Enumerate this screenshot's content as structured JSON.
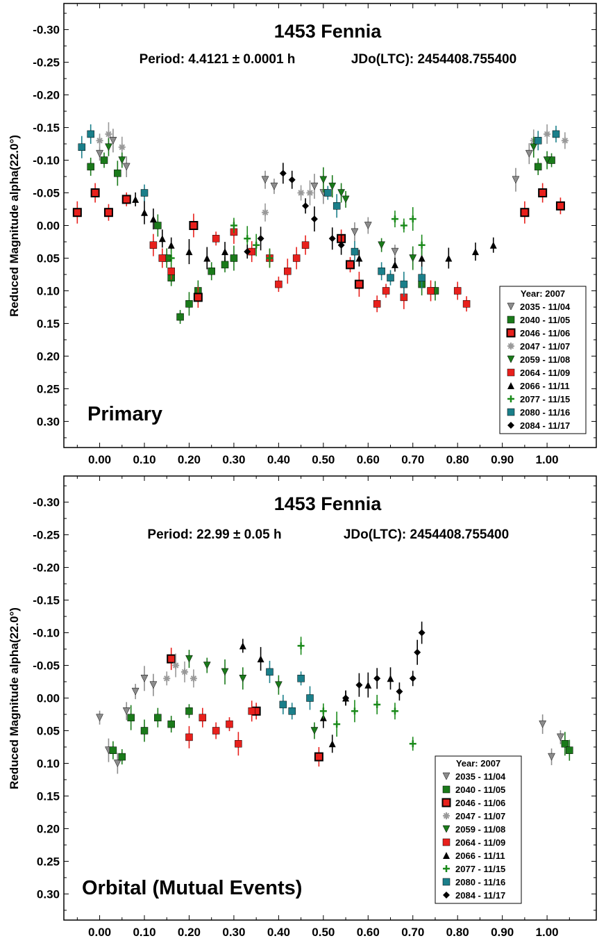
{
  "chart_data": [
    {
      "type": "scatter",
      "title": "1453 Fennia",
      "period": "Period: 4.4121 ± 0.0001 h",
      "epoch": "JDo(LTC): 2454408.755400",
      "ylabel": "Reduced Magnitude alpha(22.0°)",
      "panel_label": "Primary",
      "xlim": [
        -0.08,
        1.11
      ],
      "ylim": [
        -0.34,
        0.34
      ],
      "y_inverted": true,
      "x_ticks": [
        "0.00",
        "0.10",
        "0.20",
        "0.30",
        "0.40",
        "0.50",
        "0.60",
        "0.70",
        "0.80",
        "0.90",
        "1.00"
      ],
      "y_ticks": [
        "-0.30",
        "-0.25",
        "-0.20",
        "-0.15",
        "-0.10",
        "-0.05",
        "0.00",
        "0.05",
        "0.10",
        "0.15",
        "0.20",
        "0.25",
        "0.30"
      ],
      "legend": {
        "title": "Year: 2007",
        "position": "bottom-right",
        "entries": [
          {
            "label": "2035 - 11/04",
            "marker": "triangle-down",
            "color": "#8c8c8c"
          },
          {
            "label": "2040 - 11/05",
            "marker": "square",
            "color": "#1a7a1a"
          },
          {
            "label": "2046 - 11/06",
            "marker": "square-outlined",
            "color": "#e8201c"
          },
          {
            "label": "2047 - 11/07",
            "marker": "asterisk",
            "color": "#999999"
          },
          {
            "label": "2059 - 11/08",
            "marker": "triangle-down",
            "color": "#1a7a1a"
          },
          {
            "label": "2064 - 11/09",
            "marker": "square",
            "color": "#e8201c"
          },
          {
            "label": "2066 - 11/11",
            "marker": "triangle-up",
            "color": "#000000"
          },
          {
            "label": "2077 - 11/15",
            "marker": "plus",
            "color": "#1a8a1a"
          },
          {
            "label": "2080 - 11/16",
            "marker": "square",
            "color": "#1a7f8a"
          },
          {
            "label": "2084 - 11/17",
            "marker": "diamond",
            "color": "#000000"
          }
        ]
      },
      "series": [
        {
          "name": "2035 - 11/04",
          "x": [
            0.0,
            0.03,
            0.06,
            0.37,
            0.39,
            0.48,
            0.5,
            0.57,
            0.6,
            0.66,
            0.93,
            0.96
          ],
          "y": [
            -0.11,
            -0.13,
            -0.09,
            -0.07,
            -0.06,
            -0.06,
            -0.05,
            0.01,
            0.0,
            0.04,
            -0.07,
            -0.11
          ]
        },
        {
          "name": "2040 - 11/05",
          "x": [
            -0.02,
            0.01,
            0.04,
            0.13,
            0.15,
            0.16,
            0.18,
            0.2,
            0.22,
            0.25,
            0.28,
            0.3,
            0.72,
            0.75,
            0.98,
            1.01
          ],
          "y": [
            -0.09,
            -0.1,
            -0.08,
            0.0,
            0.05,
            0.08,
            0.14,
            0.12,
            0.1,
            0.07,
            0.06,
            0.05,
            0.09,
            0.1,
            -0.09,
            -0.1
          ]
        },
        {
          "name": "2046 - 11/06",
          "x": [
            -0.05,
            -0.01,
            0.02,
            0.06,
            0.21,
            0.22,
            0.54,
            0.56,
            0.58,
            0.95,
            0.99,
            1.03
          ],
          "y": [
            -0.02,
            -0.05,
            -0.02,
            -0.04,
            0.0,
            0.11,
            0.02,
            0.06,
            0.09,
            -0.02,
            -0.05,
            -0.03
          ]
        },
        {
          "name": "2047 - 11/07",
          "x": [
            0.0,
            0.02,
            0.05,
            0.37,
            0.45,
            0.47,
            0.97,
            1.0,
            1.04
          ],
          "y": [
            -0.13,
            -0.14,
            -0.12,
            -0.02,
            -0.05,
            -0.05,
            -0.13,
            -0.14,
            -0.13
          ]
        },
        {
          "name": "2059 - 11/08",
          "x": [
            0.02,
            0.05,
            0.5,
            0.52,
            0.54,
            0.55,
            0.63,
            0.7,
            0.97,
            1.0
          ],
          "y": [
            -0.12,
            -0.1,
            -0.07,
            -0.06,
            -0.05,
            -0.04,
            0.03,
            0.05,
            -0.12,
            -0.1
          ]
        },
        {
          "name": "2064 - 11/09",
          "x": [
            0.12,
            0.14,
            0.16,
            0.26,
            0.3,
            0.34,
            0.38,
            0.4,
            0.42,
            0.44,
            0.46,
            0.62,
            0.64,
            0.68,
            0.74,
            0.8,
            0.82
          ],
          "y": [
            0.03,
            0.05,
            0.07,
            0.02,
            0.01,
            0.04,
            0.05,
            0.09,
            0.07,
            0.05,
            0.03,
            0.12,
            0.1,
            0.11,
            0.1,
            0.1,
            0.12
          ]
        },
        {
          "name": "2066 - 11/11",
          "x": [
            0.08,
            0.1,
            0.12,
            0.14,
            0.16,
            0.2,
            0.24,
            0.28,
            0.58,
            0.66,
            0.72,
            0.78,
            0.84,
            0.88
          ],
          "y": [
            -0.04,
            -0.02,
            -0.01,
            0.02,
            0.03,
            0.04,
            0.05,
            0.04,
            0.05,
            0.06,
            0.05,
            0.05,
            0.04,
            0.03
          ]
        },
        {
          "name": "2077 - 11/15",
          "x": [
            0.16,
            0.3,
            0.33,
            0.35,
            0.38,
            0.66,
            0.68,
            0.7,
            0.72
          ],
          "y": [
            0.05,
            0.0,
            0.02,
            0.03,
            0.05,
            -0.01,
            0.0,
            -0.01,
            0.03
          ]
        },
        {
          "name": "2080 - 11/16",
          "x": [
            -0.04,
            -0.02,
            0.1,
            0.51,
            0.53,
            0.57,
            0.63,
            0.65,
            0.68,
            0.72,
            0.98,
            1.02
          ],
          "y": [
            -0.12,
            -0.14,
            -0.05,
            -0.05,
            -0.03,
            0.04,
            0.07,
            0.08,
            0.09,
            0.08,
            -0.13,
            -0.14
          ]
        },
        {
          "name": "2084 - 11/17",
          "x": [
            0.33,
            0.36,
            0.41,
            0.43,
            0.46,
            0.48,
            0.52,
            0.54
          ],
          "y": [
            0.04,
            0.02,
            -0.08,
            -0.07,
            -0.03,
            -0.01,
            0.02,
            0.03
          ]
        }
      ]
    },
    {
      "type": "scatter",
      "title": "1453 Fennia",
      "period": "Period: 22.99 ± 0.05 h",
      "epoch": "JDo(LTC): 2454408.755400",
      "ylabel": "Reduced Magnitude alpha(22.0°)",
      "panel_label": "Orbital (Mutual Events)",
      "xlim": [
        -0.08,
        1.11
      ],
      "ylim": [
        -0.34,
        0.34
      ],
      "y_inverted": true,
      "x_ticks": [
        "0.00",
        "0.10",
        "0.20",
        "0.30",
        "0.40",
        "0.50",
        "0.60",
        "0.70",
        "0.80",
        "0.90",
        "1.00"
      ],
      "y_ticks": [
        "-0.30",
        "-0.25",
        "-0.20",
        "-0.15",
        "-0.10",
        "-0.05",
        "0.00",
        "0.05",
        "0.10",
        "0.15",
        "0.20",
        "0.25",
        "0.30"
      ],
      "legend": {
        "title": "Year: 2007",
        "position": "bottom-right",
        "entries": [
          {
            "label": "2035 - 11/04",
            "marker": "triangle-down",
            "color": "#8c8c8c"
          },
          {
            "label": "2040 - 11/05",
            "marker": "square",
            "color": "#1a7a1a"
          },
          {
            "label": "2046 - 11/06",
            "marker": "square-outlined",
            "color": "#e8201c"
          },
          {
            "label": "2047 - 11/07",
            "marker": "asterisk",
            "color": "#999999"
          },
          {
            "label": "2059 - 11/08",
            "marker": "triangle-down",
            "color": "#1a7a1a"
          },
          {
            "label": "2064 - 11/09",
            "marker": "square",
            "color": "#e8201c"
          },
          {
            "label": "2066 - 11/11",
            "marker": "triangle-up",
            "color": "#000000"
          },
          {
            "label": "2077 - 11/15",
            "marker": "plus",
            "color": "#1a8a1a"
          },
          {
            "label": "2080 - 11/16",
            "marker": "square",
            "color": "#1a7f8a"
          },
          {
            "label": "2084 - 11/17",
            "marker": "diamond",
            "color": "#000000"
          }
        ]
      },
      "series": [
        {
          "name": "2035 - 11/04",
          "x": [
            0.0,
            0.02,
            0.04,
            0.06,
            0.08,
            0.1,
            0.12,
            0.99,
            1.01,
            1.03
          ],
          "y": [
            0.03,
            0.08,
            0.1,
            0.02,
            -0.01,
            -0.03,
            -0.02,
            0.04,
            0.09,
            0.06
          ]
        },
        {
          "name": "2040 - 11/05",
          "x": [
            0.03,
            0.05,
            0.07,
            0.1,
            0.13,
            0.16,
            0.2,
            1.04,
            1.05
          ],
          "y": [
            0.08,
            0.09,
            0.03,
            0.05,
            0.03,
            0.04,
            0.02,
            0.07,
            0.08
          ]
        },
        {
          "name": "2046 - 11/06",
          "x": [
            0.16,
            0.49,
            0.35
          ],
          "y": [
            -0.06,
            0.09,
            0.02
          ]
        },
        {
          "name": "2047 - 11/07",
          "x": [
            0.15,
            0.17,
            0.19,
            0.21
          ],
          "y": [
            -0.03,
            -0.05,
            -0.04,
            -0.03
          ]
        },
        {
          "name": "2059 - 11/08",
          "x": [
            0.2,
            0.24,
            0.28,
            0.32,
            0.4,
            0.48
          ],
          "y": [
            -0.06,
            -0.05,
            -0.04,
            -0.03,
            -0.02,
            0.05
          ]
        },
        {
          "name": "2064 - 11/09",
          "x": [
            0.2,
            0.23,
            0.26,
            0.29,
            0.31,
            0.34
          ],
          "y": [
            0.06,
            0.03,
            0.05,
            0.04,
            0.07,
            0.02
          ]
        },
        {
          "name": "2066 - 11/11",
          "x": [
            0.32,
            0.36,
            0.5,
            0.52,
            0.55,
            0.6,
            0.65
          ],
          "y": [
            -0.08,
            -0.06,
            0.03,
            0.07,
            0.0,
            -0.02,
            -0.03
          ]
        },
        {
          "name": "2077 - 11/15",
          "x": [
            0.45,
            0.5,
            0.53,
            0.57,
            0.62,
            0.66,
            0.7
          ],
          "y": [
            -0.08,
            0.02,
            0.04,
            0.02,
            0.01,
            0.02,
            0.07
          ]
        },
        {
          "name": "2080 - 11/16",
          "x": [
            0.38,
            0.41,
            0.43,
            0.45,
            0.47
          ],
          "y": [
            -0.04,
            0.01,
            0.02,
            -0.03,
            0.0
          ]
        },
        {
          "name": "2084 - 11/17",
          "x": [
            0.55,
            0.58,
            0.62,
            0.67,
            0.7,
            0.71,
            0.72
          ],
          "y": [
            0.0,
            -0.02,
            -0.03,
            -0.01,
            -0.03,
            -0.07,
            -0.1
          ]
        }
      ]
    }
  ]
}
